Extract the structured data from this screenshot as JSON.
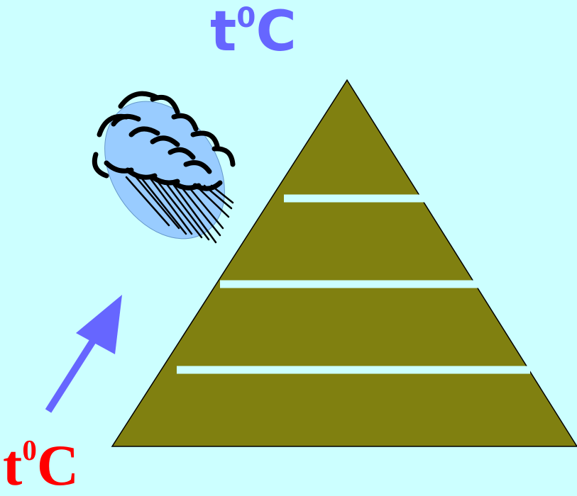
{
  "colors": {
    "background": "#ccffff",
    "mountain": "#808010",
    "layer_lines": "#ccffff",
    "top_label": "#6666ff",
    "bottom_label": "#ff0000",
    "arrow": "#6666ff",
    "cloud_fill": "#99ccff",
    "cloud_outline": "#000000"
  },
  "labels": {
    "top": {
      "base": "t",
      "superscript": "0",
      "unit": "C"
    },
    "bottom": {
      "base": "t",
      "superscript": "0",
      "unit": "C"
    }
  },
  "icons": {
    "cloud": "rain-cloud-icon",
    "arrow": "arrow-up-right-icon"
  }
}
